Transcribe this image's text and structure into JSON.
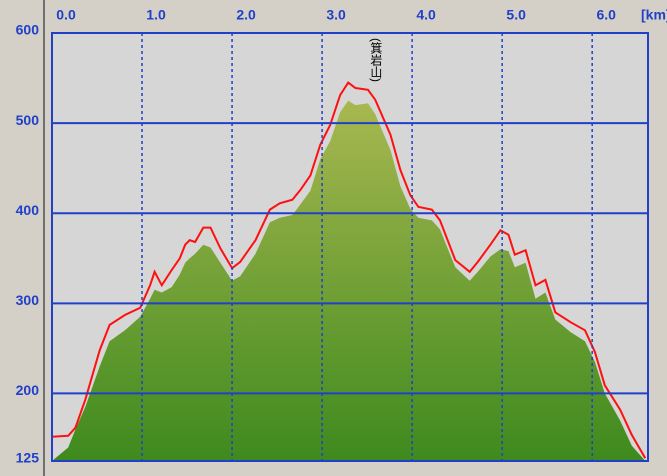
{
  "chart_data": {
    "type": "area",
    "annotations": [
      "(箕岩山)"
    ],
    "x_label": "[km]",
    "x": [
      0,
      0.18,
      0.26,
      0.37,
      0.53,
      0.64,
      0.81,
      0.98,
      1.09,
      1.14,
      1.22,
      1.33,
      1.42,
      1.48,
      1.53,
      1.59,
      1.68,
      1.76,
      1.87,
      2.0,
      2.09,
      2.26,
      2.42,
      2.53,
      2.67,
      2.76,
      2.87,
      2.98,
      3.09,
      3.2,
      3.29,
      3.37,
      3.51,
      3.59,
      3.76,
      3.87,
      3.98,
      4.07,
      4.22,
      4.31,
      4.48,
      4.64,
      4.73,
      4.87,
      4.98,
      5.07,
      5.14,
      5.26,
      5.37,
      5.48,
      5.59,
      5.76,
      5.92,
      6.03,
      6.14,
      6.31,
      6.44,
      6.59
    ],
    "series": [
      {
        "color": "#7aa038",
        "fill": true,
        "values": [
          125,
          140,
          160,
          185,
          230,
          258,
          270,
          285,
          305,
          315,
          312,
          318,
          332,
          345,
          350,
          355,
          365,
          362,
          345,
          325,
          330,
          355,
          390,
          395,
          398,
          410,
          425,
          460,
          480,
          512,
          525,
          520,
          522,
          510,
          470,
          430,
          405,
          395,
          392,
          382,
          340,
          325,
          335,
          352,
          360,
          358,
          340,
          345,
          305,
          312,
          282,
          268,
          258,
          235,
          200,
          170,
          142,
          125
        ]
      },
      {
        "color": "#ff1010",
        "fill": false,
        "values": [
          152,
          153,
          162,
          193,
          248,
          276,
          287,
          295,
          320,
          335,
          320,
          337,
          350,
          365,
          370,
          368,
          384,
          384,
          361,
          339,
          346,
          370,
          404,
          411,
          415,
          426,
          442,
          476,
          498,
          531,
          545,
          539,
          537,
          526,
          487,
          448,
          420,
          407,
          404,
          392,
          348,
          335,
          346,
          365,
          381,
          376,
          354,
          359,
          320,
          326,
          290,
          279,
          270,
          246,
          209,
          182,
          154,
          128
        ]
      }
    ],
    "xlim": [
      0,
      6.62
    ],
    "ylim": [
      125,
      600
    ],
    "xticks": [
      {
        "value": 0,
        "label": "0.0"
      },
      {
        "value": 1,
        "label": "1.0"
      },
      {
        "value": 2,
        "label": "2.0"
      },
      {
        "value": 3,
        "label": "3.0"
      },
      {
        "value": 4,
        "label": "4.0"
      },
      {
        "value": 5,
        "label": "5.0"
      },
      {
        "value": 6,
        "label": "6.0"
      }
    ],
    "yticks": [
      125,
      200,
      300,
      400,
      500,
      600
    ],
    "grid": true
  }
}
